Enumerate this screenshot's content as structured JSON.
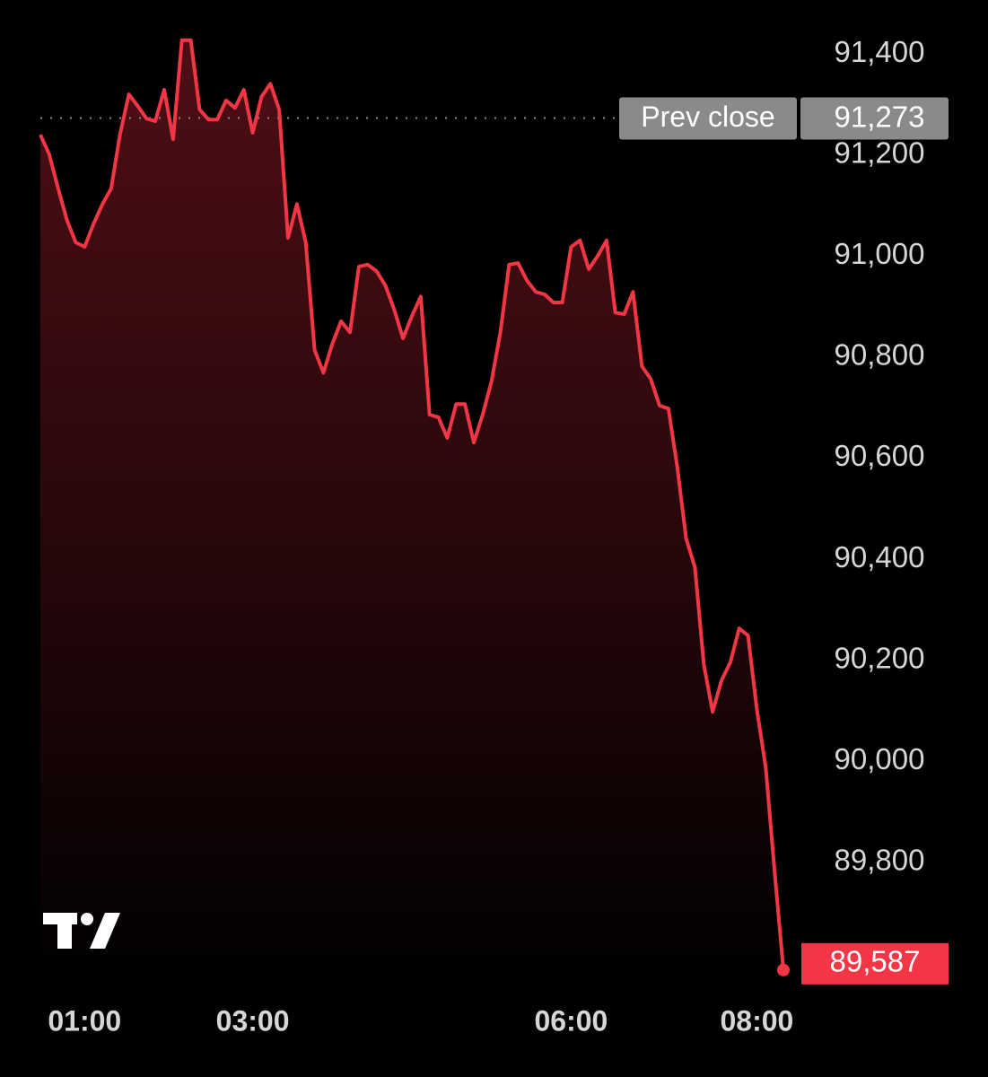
{
  "chart_data": {
    "type": "line",
    "categories": [
      null,
      null,
      null,
      null,
      null,
      "01:00",
      null,
      null,
      null,
      null,
      null,
      null,
      null,
      null,
      null,
      null,
      null,
      null,
      null,
      null,
      null,
      null,
      null,
      null,
      "03:00",
      null,
      null,
      null,
      null,
      null,
      null,
      null,
      null,
      null,
      null,
      null,
      null,
      null,
      null,
      null,
      null,
      null,
      null,
      null,
      null,
      null,
      null,
      null,
      null,
      null,
      null,
      null,
      null,
      null,
      null,
      null,
      null,
      null,
      null,
      null,
      "06:00",
      null,
      null,
      null,
      null,
      null,
      null,
      null,
      null,
      null,
      null,
      null,
      null,
      null,
      null,
      null,
      null,
      null,
      null,
      null,
      null,
      "08:00",
      null,
      null,
      null
    ],
    "values": [
      91240,
      91201,
      91134,
      91071,
      91027,
      91018,
      91063,
      91102,
      91134,
      91240,
      91320,
      91297,
      91272,
      91267,
      91329,
      91231,
      91427,
      91427,
      91290,
      91270,
      91270,
      91308,
      91293,
      91329,
      91244,
      91315,
      91341,
      91290,
      91036,
      91103,
      91027,
      90814,
      90769,
      90826,
      90871,
      90849,
      90979,
      90983,
      90970,
      90942,
      90894,
      90837,
      90881,
      90920,
      90686,
      90681,
      90640,
      90707,
      90707,
      90631,
      90686,
      90752,
      90849,
      90983,
      90986,
      90952,
      90929,
      90924,
      90908,
      90908,
      91018,
      91031,
      90974,
      91000,
      91031,
      90888,
      90885,
      90929,
      90782,
      90757,
      90704,
      90698,
      90583,
      90441,
      90384,
      90192,
      90098,
      90160,
      90196,
      90263,
      90249,
      90103,
      89988,
      89784,
      89587
    ],
    "color": "#f23645",
    "ylim": [
      89560,
      91480
    ],
    "yticks": [
      {
        "value": 89800,
        "label": "89,800"
      },
      {
        "value": 90000,
        "label": "90,000"
      },
      {
        "value": 90200,
        "label": "90,200"
      },
      {
        "value": 90400,
        "label": "90,400"
      },
      {
        "value": 90600,
        "label": "90,600"
      },
      {
        "value": 90800,
        "label": "90,800"
      },
      {
        "value": 91000,
        "label": "91,000"
      },
      {
        "value": 91200,
        "label": "91,200"
      },
      {
        "value": 91400,
        "label": "91,400"
      }
    ],
    "grid": false,
    "prev_close": {
      "text": "Prev close",
      "value": 91273,
      "label": "91,273"
    },
    "last_price": {
      "value": 89587,
      "label": "89,587"
    }
  }
}
